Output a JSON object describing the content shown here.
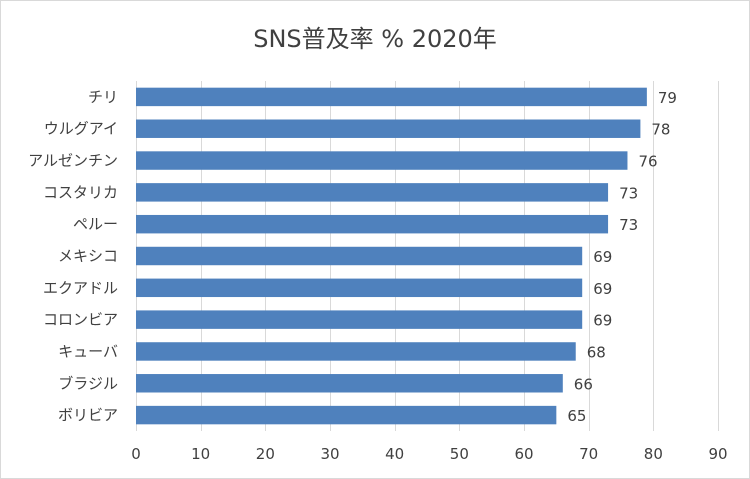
{
  "chart_data": {
    "type": "bar",
    "orientation": "horizontal",
    "title": "SNS普及率 % 2020年",
    "categories": [
      "チリ",
      "ウルグアイ",
      "アルゼンチン",
      "コスタリカ",
      "ペルー",
      "メキシコ",
      "エクアドル",
      "コロンビア",
      "キューバ",
      "ブラジル",
      "ボリビア"
    ],
    "series": [
      {
        "values": [
          79,
          78,
          76,
          73,
          73,
          69,
          69,
          69,
          68,
          66,
          65
        ]
      }
    ],
    "xlabel": "",
    "ylabel": "",
    "xlim": [
      0,
      90
    ],
    "xticks": [
      0,
      10,
      20,
      30,
      40,
      50,
      60,
      70,
      80,
      90
    ],
    "grid": "vertical",
    "legend": "none",
    "bar_color": "#4f81bd"
  }
}
